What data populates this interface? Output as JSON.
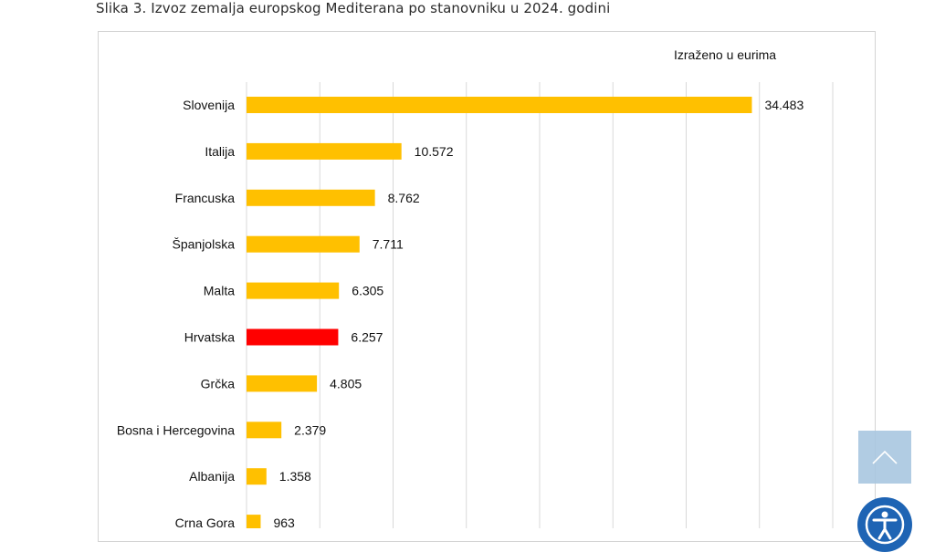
{
  "page": {
    "caption": "Slika 3. Izvoz zemalja europskog Mediterana po stanovniku u 2024. godini"
  },
  "chart_data": {
    "type": "bar",
    "orientation": "horizontal",
    "note": "Izraženo u eurima",
    "categories": [
      "Slovenija",
      "Italija",
      "Francuska",
      "Španjolska",
      "Malta",
      "Hrvatska",
      "Grčka",
      "Bosna i Hercegovina",
      "Albanija",
      "Crna Gora"
    ],
    "values": [
      34483,
      10572,
      8762,
      7711,
      6305,
      6257,
      4805,
      2379,
      1358,
      963
    ],
    "value_labels": [
      "34.483",
      "10.572",
      "8.762",
      "7.711",
      "6.305",
      "6.257",
      "4.805",
      "2.379",
      "1.358",
      "963"
    ],
    "bar_color": "#FFC000",
    "highlight_category": "Hrvatska",
    "highlight_color": "#FF0000",
    "xlim": [
      0,
      40000
    ],
    "x_gridlines": [
      5000,
      10000,
      15000,
      20000,
      25000,
      30000,
      35000,
      40000
    ],
    "grid": true,
    "x_tick_labels_visible": false
  },
  "widgets": {
    "scroll_top_icon": "chevron-up-icon",
    "accessibility_icon": "accessibility-icon",
    "scroll_top_color": "#A9C7E0",
    "accessibility_color": "#1E64B4"
  }
}
